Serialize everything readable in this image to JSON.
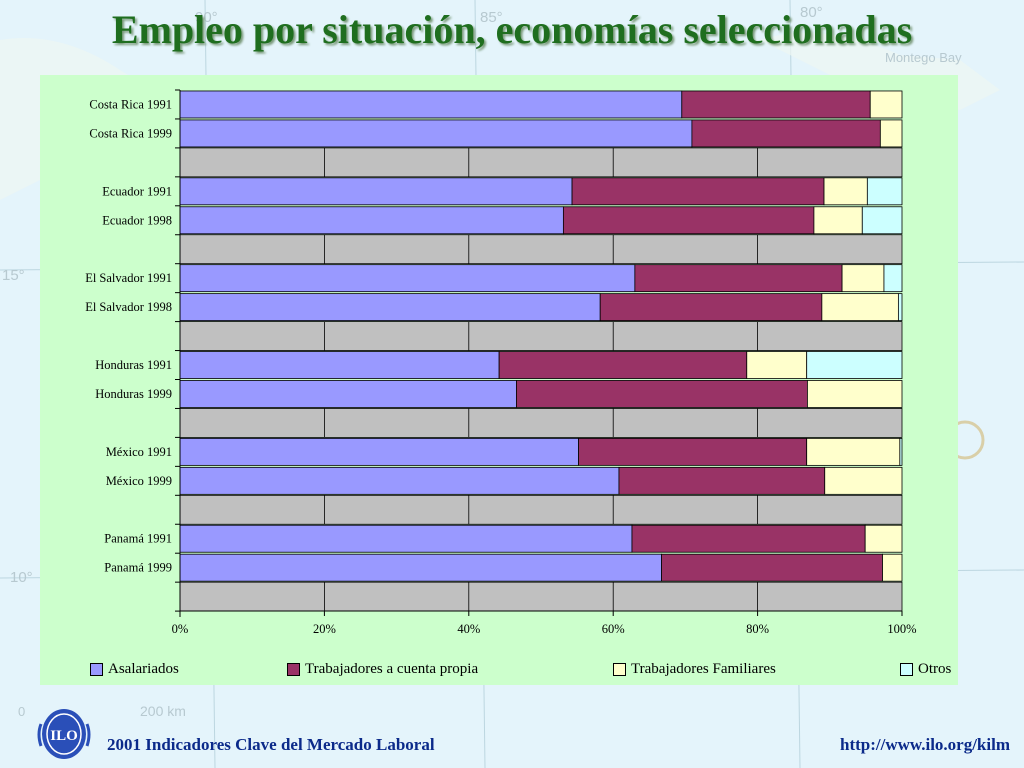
{
  "title": "Empleo por situación, economías seleccionadas",
  "footer": {
    "left": "2001 Indicadores Clave del Mercado Laboral",
    "right": "http://www.ilo.org/kilm"
  },
  "map_labels": [
    "90°",
    "85°",
    "80°",
    "15°",
    "10°",
    "Montego Bay",
    "200 km",
    "0"
  ],
  "logo_text": "ILO",
  "colors": {
    "title": "#1f6e1f",
    "panel": "#ccffcc",
    "gap_row": "#c0c0c0",
    "footer_text": "#0b2a8a"
  },
  "chart_data": {
    "type": "bar",
    "orientation": "horizontal",
    "stacked": "percent",
    "categories": [
      "Costa Rica 1991",
      "Costa Rica 1999",
      "Ecuador 1991",
      "Ecuador 1998",
      "El Salvador 1991",
      "El Salvador 1998",
      "Honduras 1991",
      "Honduras 1999",
      "México 1991",
      "México 1999",
      "Panamá 1991",
      "Panamá 1999"
    ],
    "series": [
      {
        "name": "Asalariados",
        "color": "#9999ff",
        "values": [
          69.5,
          70.9,
          54.3,
          53.1,
          63.0,
          58.2,
          44.2,
          46.6,
          55.2,
          60.8,
          62.6,
          66.7
        ]
      },
      {
        "name": "Trabajadores a cuenta propia",
        "color": "#993366",
        "values": [
          26.1,
          26.1,
          34.9,
          34.7,
          28.7,
          30.7,
          34.3,
          40.3,
          31.6,
          28.5,
          32.3,
          30.6
        ]
      },
      {
        "name": "Trabajadores Familiares",
        "color": "#ffffcc",
        "values": [
          4.4,
          3.0,
          6.0,
          6.7,
          5.8,
          10.6,
          8.3,
          13.1,
          12.9,
          10.7,
          5.1,
          2.7
        ]
      },
      {
        "name": "Otros",
        "color": "#ccffff",
        "values": [
          0.0,
          0.0,
          4.8,
          5.5,
          2.5,
          0.5,
          13.2,
          0.0,
          0.3,
          0.0,
          0.0,
          0.0
        ]
      }
    ],
    "xticks": [
      "0%",
      "20%",
      "40%",
      "60%",
      "80%",
      "100%"
    ],
    "xlim": [
      0,
      100
    ],
    "title": "",
    "xlabel": "",
    "ylabel": "",
    "legend": "bottom",
    "grid": true
  }
}
